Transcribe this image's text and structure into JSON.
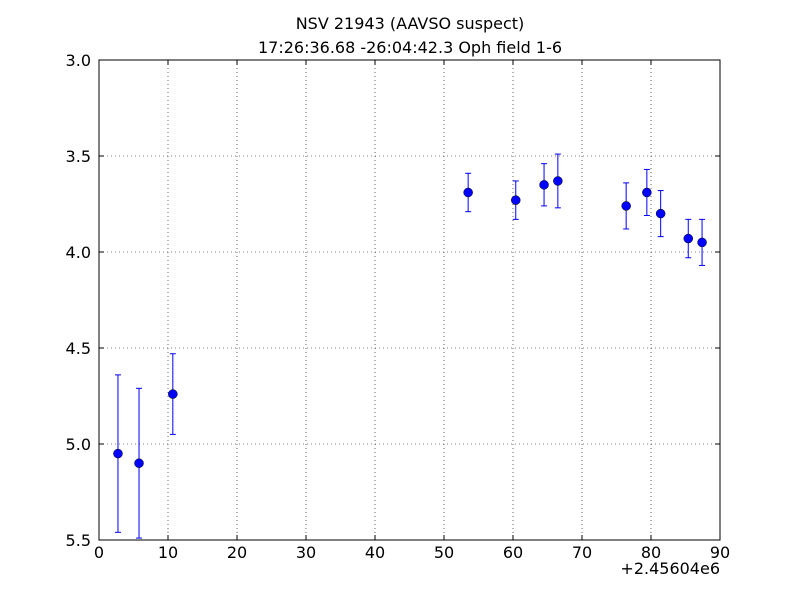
{
  "chart_data": {
    "type": "errorbar",
    "title": "NSV 21943 (AAVSO suspect)",
    "subtitle": "17:26:36.68 -26:04:42.3 Oph field 1-6",
    "x_offset_label": "+2.45604e6",
    "x": [
      2.75,
      5.8,
      10.7,
      53.5,
      60.4,
      64.5,
      66.5,
      76.4,
      79.4,
      81.4,
      85.4,
      87.4
    ],
    "values": [
      5.05,
      5.1,
      4.74,
      3.69,
      3.73,
      3.65,
      3.63,
      3.76,
      3.69,
      3.8,
      3.93,
      3.95
    ],
    "errors": [
      0.41,
      0.39,
      0.21,
      0.1,
      0.1,
      0.11,
      0.14,
      0.12,
      0.12,
      0.12,
      0.1,
      0.12
    ],
    "color": "#0000ff",
    "xlim": [
      0,
      90
    ],
    "xticks": [
      0,
      10,
      20,
      30,
      40,
      50,
      60,
      70,
      80,
      90
    ],
    "ylim": [
      5.5,
      3.0
    ],
    "yticks": [
      {
        "value": 3.0,
        "label": "3.0"
      },
      {
        "value": 3.5,
        "label": "3.5"
      },
      {
        "value": 4.0,
        "label": "4.0"
      },
      {
        "value": 4.5,
        "label": "4.5"
      },
      {
        "value": 5.0,
        "label": "5.0"
      },
      {
        "value": 5.5,
        "label": "5.5"
      }
    ],
    "grid": true
  }
}
